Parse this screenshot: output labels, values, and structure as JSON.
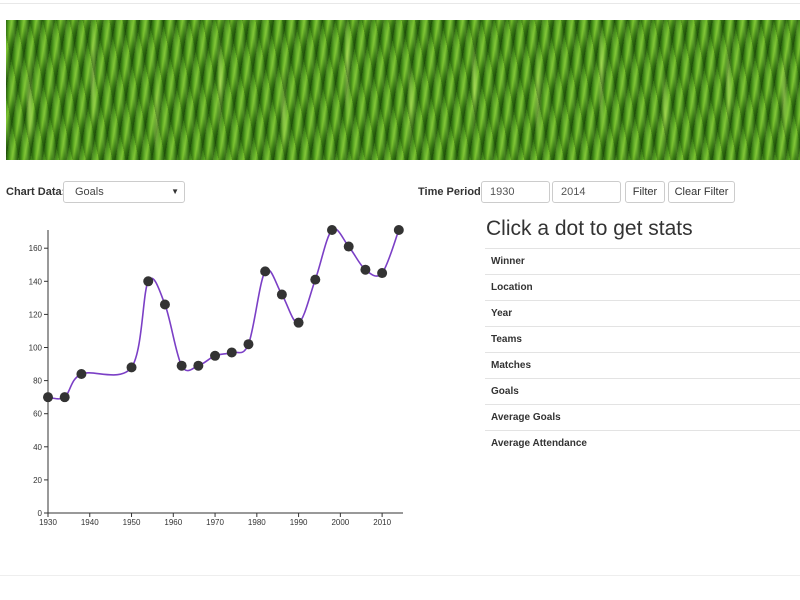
{
  "controls": {
    "chart_data_label": "Chart Data:",
    "chart_data_value": "Goals",
    "time_period_label": "Time Period:",
    "start_year": "1930",
    "end_year": "2014",
    "filter_label": "Filter",
    "clear_filter_label": "Clear Filter"
  },
  "stats": {
    "title": "Click a dot to get stats",
    "rows": [
      "Winner",
      "Location",
      "Year",
      "Teams",
      "Matches",
      "Goals",
      "Average Goals",
      "Average Attendance"
    ]
  },
  "colors": {
    "line": "#7b3fc6",
    "dot": "#333333",
    "banner": "#4c9a1c"
  },
  "chart_data": {
    "type": "line",
    "x": [
      1930,
      1934,
      1938,
      1950,
      1954,
      1958,
      1962,
      1966,
      1970,
      1974,
      1978,
      1982,
      1986,
      1990,
      1994,
      1998,
      2002,
      2006,
      2010,
      2014
    ],
    "values": [
      70,
      70,
      84,
      88,
      140,
      126,
      89,
      89,
      95,
      97,
      102,
      146,
      132,
      115,
      141,
      171,
      161,
      147,
      145,
      171
    ],
    "xlim": [
      1930,
      2015
    ],
    "ylim": [
      0,
      171
    ],
    "x_ticks": [
      1930,
      1940,
      1950,
      1960,
      1970,
      1980,
      1990,
      2000,
      2010
    ],
    "y_ticks": [
      0,
      20,
      40,
      60,
      80,
      100,
      120,
      140,
      160
    ],
    "title": "",
    "xlabel": "",
    "ylabel": ""
  }
}
